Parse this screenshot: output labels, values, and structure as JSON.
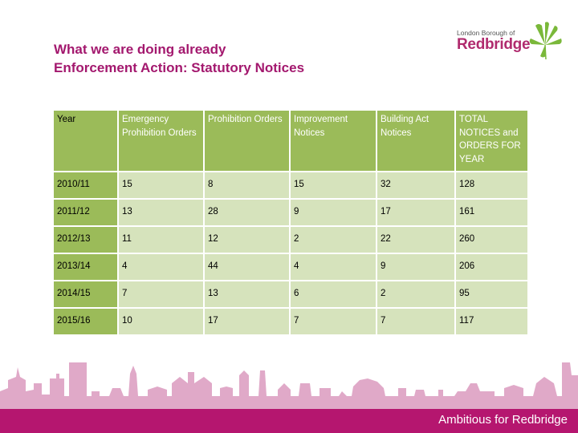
{
  "title": {
    "line1": "What we are doing already",
    "line2": "Enforcement Action: Statutory Notices"
  },
  "logo": {
    "small": "London Borough of",
    "big": "Redbridge"
  },
  "table": {
    "headers": [
      "Year",
      "Emergency Prohibition Orders",
      "Prohibition Orders",
      "Improvement Notices",
      "Building Act Notices",
      "TOTAL NOTICES and ORDERS FOR YEAR"
    ],
    "rows": [
      [
        "2010/11",
        "15",
        "8",
        "15",
        "32",
        "128"
      ],
      [
        "2011/12",
        "13",
        "28",
        "9",
        "17",
        "161"
      ],
      [
        "2012/13",
        "11",
        "12",
        "2",
        "22",
        "260"
      ],
      [
        "2013/14",
        "4",
        "44",
        "4",
        "9",
        "206"
      ],
      [
        "2014/15",
        "7",
        "13",
        "6",
        "2",
        "95"
      ],
      [
        "2015/16",
        "10",
        "17",
        "7",
        "7",
        "117"
      ]
    ]
  },
  "footer": {
    "tagline": "Ambitious for Redbridge"
  },
  "colors": {
    "title": "#a3186e",
    "header_green": "#9bbb59",
    "cell_green": "#d6e3bc",
    "footer_magenta": "#b5166f",
    "skyline": "#e0a9c8"
  }
}
